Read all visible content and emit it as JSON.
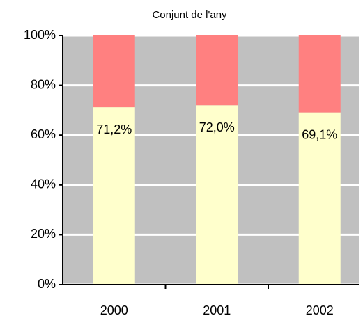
{
  "chart_data": {
    "type": "stacked_bar_100",
    "title": "Conjunt de l'any",
    "categories": [
      "2000",
      "2001",
      "2002"
    ],
    "series": [
      {
        "color": "#ffffcc",
        "values": [
          71.2,
          72.0,
          69.1
        ],
        "value_labels": [
          "71,2%",
          "72,0%",
          "69,1%"
        ]
      },
      {
        "color": "#ff8080",
        "values": [
          28.8,
          28.0,
          30.9
        ]
      }
    ],
    "ylim": [
      0,
      100
    ],
    "yticks": [
      {
        "value": 0,
        "label": "0%"
      },
      {
        "value": 20,
        "label": "20%"
      },
      {
        "value": 40,
        "label": "40%"
      },
      {
        "value": 60,
        "label": "60%"
      },
      {
        "value": 80,
        "label": "80%"
      },
      {
        "value": 100,
        "label": "100%"
      }
    ],
    "grid": true,
    "background": "#c0c0c0"
  }
}
